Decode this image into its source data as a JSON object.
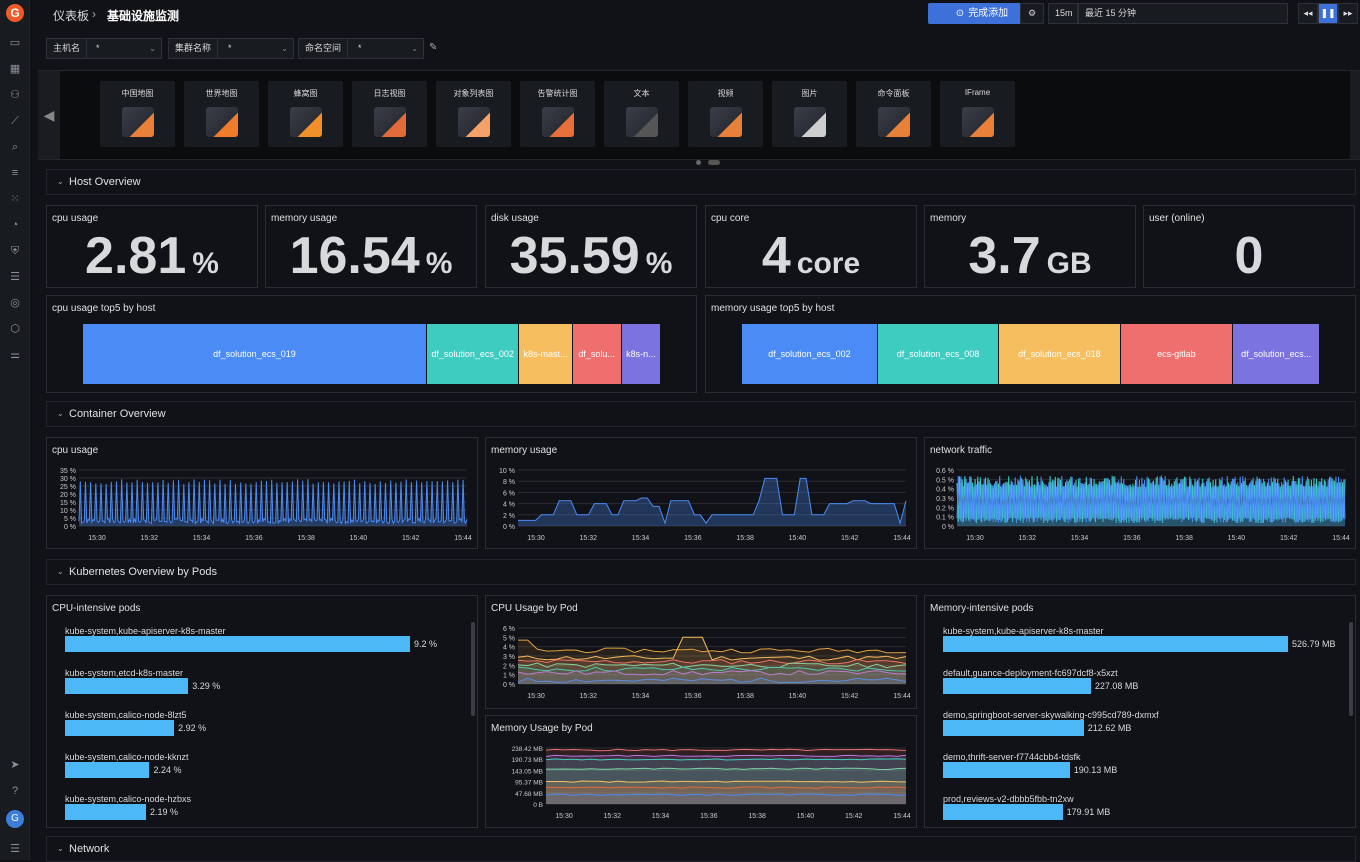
{
  "breadcrumb": {
    "root": "仪表板",
    "sep": "›",
    "current": "基础设施监测"
  },
  "toolbar": {
    "done_label": "完成添加",
    "refresh": "15m",
    "time_range": "最近 15 分钟"
  },
  "variables": [
    {
      "label": "主机名",
      "value": "*"
    },
    {
      "label": "集群名称",
      "value": "*"
    },
    {
      "label": "命名空间",
      "value": "*"
    }
  ],
  "chart_types": [
    "中国地图",
    "世界地图",
    "蜂窝图",
    "日志视图",
    "对象列表图",
    "告警统计图",
    "文本",
    "视频",
    "图片",
    "命令面板",
    "IFrame"
  ],
  "sections": {
    "host": "Host Overview",
    "container": "Container Overview",
    "k8s": "Kubernetes Overview by Pods",
    "network": "Network"
  },
  "stats": [
    {
      "title": "cpu usage",
      "value": "2.81",
      "unit": "%"
    },
    {
      "title": "memory usage",
      "value": "16.54",
      "unit": "%"
    },
    {
      "title": "disk usage",
      "value": "35.59",
      "unit": "%"
    },
    {
      "title": "cpu core",
      "value": "4",
      "unit": "core"
    },
    {
      "title": "memory",
      "value": "3.7",
      "unit": "GB"
    },
    {
      "title": "user (online)",
      "value": "0",
      "unit": ""
    }
  ],
  "cpu_top5": {
    "title": "cpu usage top5 by host",
    "items": [
      {
        "name": "df_solution_ecs_019",
        "share": 0.595,
        "color": "#4b8bf5"
      },
      {
        "name": "df_solution_ecs_002",
        "share": 0.16,
        "color": "#3ecbc0"
      },
      {
        "name": "k8s-mast...",
        "share": 0.092,
        "color": "#f6be5f"
      },
      {
        "name": "df_solu...",
        "share": 0.085,
        "color": "#ef6f6f"
      },
      {
        "name": "k8s-n...",
        "share": 0.068,
        "color": "#7a73e0"
      }
    ]
  },
  "mem_top5": {
    "title": "memory usage top5 by host",
    "items": [
      {
        "name": "df_solution_ecs_002",
        "share": 0.235,
        "color": "#4b8bf5"
      },
      {
        "name": "df_solution_ecs_008",
        "share": 0.21,
        "color": "#3ecbc0"
      },
      {
        "name": "df_solution_ecs_018",
        "share": 0.21,
        "color": "#f6be5f"
      },
      {
        "name": "ecs-gitlab",
        "share": 0.195,
        "color": "#ef6f6f"
      },
      {
        "name": "df_solution_ecs...",
        "share": 0.15,
        "color": "#7a73e0"
      }
    ]
  },
  "time_ticks": [
    "15:30",
    "15:32",
    "15:34",
    "15:36",
    "15:38",
    "15:40",
    "15:42",
    "15:44"
  ],
  "container_charts": [
    {
      "title": "cpu usage",
      "yticks": [
        "35 %",
        "30 %",
        "25 %",
        "20 %",
        "15 %",
        "10 %",
        "5 %",
        "0 %"
      ],
      "color": "#4b8bf5"
    },
    {
      "title": "memory usage",
      "yticks": [
        "10 %",
        "8 %",
        "6 %",
        "4 %",
        "2 %",
        "0 %"
      ],
      "color": "#4b8bf5"
    },
    {
      "title": "network traffic",
      "yticks": [
        "0.6 %",
        "0.5 %",
        "0.4 %",
        "0.3 %",
        "0.2 %",
        "0.1 %",
        "0 %"
      ],
      "color": "#3ecbc0"
    }
  ],
  "cpu_pods": {
    "title": "CPU-intensive pods",
    "items": [
      {
        "name": "kube-system,kube-apiserver-k8s-master",
        "value": "9.2 %",
        "frac": 0.98
      },
      {
        "name": "kube-system,etcd-k8s-master",
        "value": "3.29 %",
        "frac": 0.35
      },
      {
        "name": "kube-system,calico-node-8lzt5",
        "value": "2.92 %",
        "frac": 0.31
      },
      {
        "name": "kube-system,calico-node-kknzt",
        "value": "2.24 %",
        "frac": 0.24
      },
      {
        "name": "kube-system,calico-node-hzbxs",
        "value": "2.19 %",
        "frac": 0.23
      }
    ]
  },
  "cpu_by_pod": {
    "title": "CPU Usage by Pod",
    "yticks": [
      "6 %",
      "5 %",
      "4 %",
      "3 %",
      "2 %",
      "1 %",
      "0 %"
    ]
  },
  "mem_by_pod": {
    "title": "Memory Usage by Pod",
    "yticks": [
      "238.42 MB",
      "190.73 MB",
      "143.05 MB",
      "95.37 MB",
      "47.68 MB",
      "0 B"
    ]
  },
  "mem_pods": {
    "title": "Memory-intensive pods",
    "items": [
      {
        "name": "kube-system,kube-apiserver-k8s-master",
        "value": "526.79 MB",
        "frac": 0.98
      },
      {
        "name": "default,guance-deployment-fc697dcf8-x5xzt",
        "value": "227.08 MB",
        "frac": 0.42
      },
      {
        "name": "demo,springboot-server-skywalking-c995cd789-dxmxf",
        "value": "212.62 MB",
        "frac": 0.4
      },
      {
        "name": "demo,thrift-server-f7744cbb4-tdsfk",
        "value": "190.13 MB",
        "frac": 0.36
      },
      {
        "name": "prod,reviews-v2-dbbb5fbb-tn2xw",
        "value": "179.91 MB",
        "frac": 0.34
      }
    ]
  }
}
